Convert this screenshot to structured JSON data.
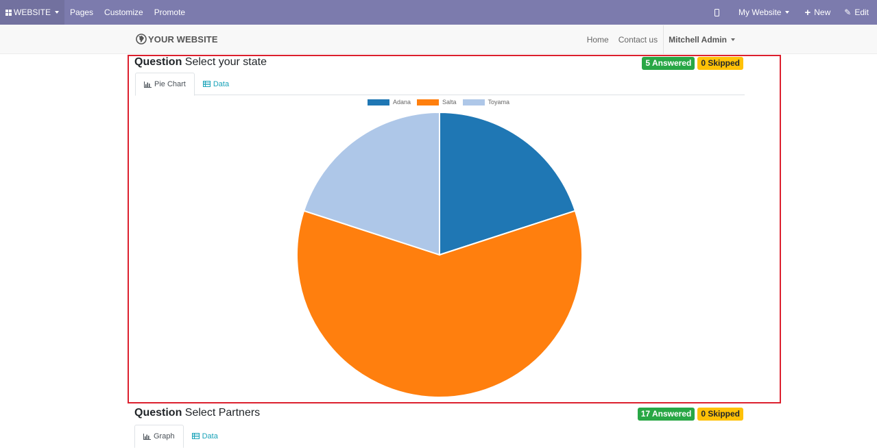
{
  "topbar": {
    "website_label": "WEBSITE",
    "pages_label": "Pages",
    "customize_label": "Customize",
    "promote_label": "Promote",
    "my_website_label": "My Website",
    "new_label": "New",
    "edit_label": "Edit",
    "background": "#7c7bad"
  },
  "site_header": {
    "logo_text": "YOUR WEBSITE",
    "nav": {
      "home": "Home",
      "contact": "Contact us",
      "user": "Mitchell Admin"
    }
  },
  "question1": {
    "prefix": "Question",
    "text": "Select your state",
    "answered": "5 Answered",
    "skipped": "0 Skipped",
    "tabs": {
      "pie": "Pie Chart",
      "data": "Data"
    }
  },
  "question2": {
    "prefix": "Question",
    "text": "Select Partners",
    "answered": "17 Answered",
    "skipped": "0 Skipped",
    "tabs": {
      "graph": "Graph",
      "data": "Data"
    }
  },
  "chart_data": {
    "type": "pie",
    "categories": [
      "Adana",
      "Salta",
      "Toyama"
    ],
    "values": [
      1,
      3,
      1
    ],
    "colors": [
      "#1f77b4",
      "#ff7f0e",
      "#aec7e8"
    ],
    "legend_position": "top-center"
  }
}
